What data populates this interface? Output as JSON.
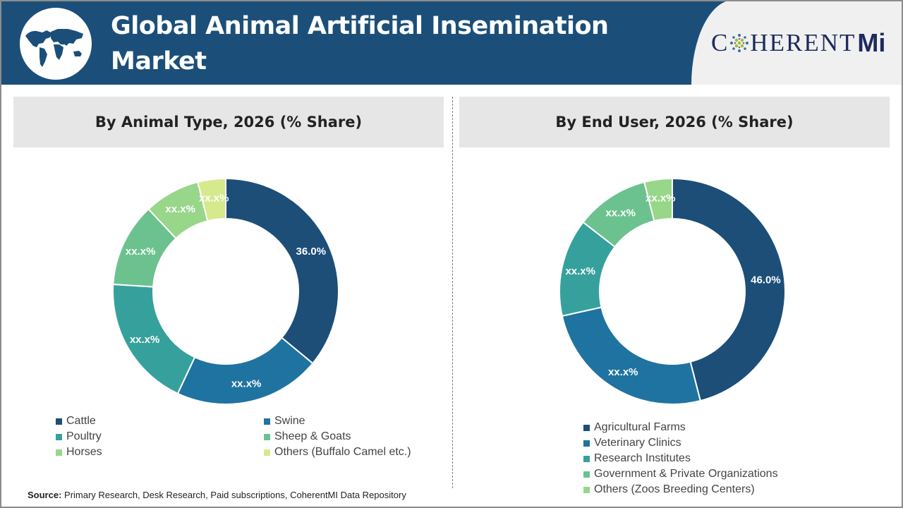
{
  "header": {
    "title_line1": "Global Animal Artificial Insemination",
    "title_line2": "Market",
    "logo_text": "C HERENT",
    "logo_suffix": "Mi",
    "logo_full": "CoherentMI"
  },
  "colors": [
    "#1c4e78",
    "#1f73a0",
    "#36a19c",
    "#6cc28f",
    "#98d68a",
    "#d7e98e"
  ],
  "chart_data": [
    {
      "type": "pie",
      "variant": "donut",
      "title": "By Animal Type, 2026 (% Share)",
      "categories": [
        "Cattle",
        "Swine",
        "Poultry",
        "Sheep & Goats",
        "Horses",
        "Others (Buffalo Camel etc.)"
      ],
      "values": [
        36.0,
        21,
        19,
        12,
        8,
        4
      ],
      "data_labels": [
        "36.0%",
        "xx.x%",
        "xx.x%",
        "xx.x%",
        "xx.x%",
        "xx.x%"
      ],
      "legend": "bottom"
    },
    {
      "type": "pie",
      "variant": "donut",
      "title": "By End User, 2026 (% Share)",
      "categories": [
        "Agricultural Farms",
        "Veterinary Clinics",
        "Research Institutes",
        "Government & Private Organizations",
        "Others (Zoos Breeding Centers)"
      ],
      "values": [
        46.0,
        25.5,
        14,
        10.5,
        4
      ],
      "data_labels": [
        "46.0%",
        "xx.x%",
        "xx.x%",
        "xx.x%",
        "xx.x%"
      ],
      "legend": "bottom"
    }
  ],
  "source": {
    "label": "Source:",
    "text": " Primary Research, Desk Research, Paid subscriptions, CoherentMI Data Repository"
  }
}
